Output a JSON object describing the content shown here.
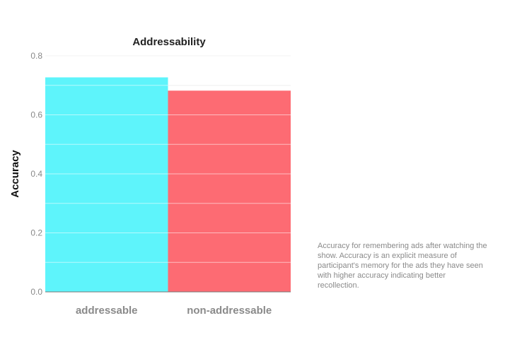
{
  "chart_data": {
    "type": "bar",
    "title": "Addressability",
    "xlabel": "",
    "ylabel": "Accuracy",
    "categories": [
      "addressable",
      "non-addressable"
    ],
    "values": [
      0.727,
      0.682
    ],
    "colors": [
      "#5ef4fb",
      "#fd6b73"
    ],
    "ylim": [
      0,
      0.8
    ],
    "yticks": [
      0.0,
      0.2,
      0.4,
      0.6,
      0.8
    ],
    "ytick_labels": [
      "0.0",
      "0.2",
      "0.4",
      "0.6",
      "0.8"
    ],
    "grid": true
  },
  "annotation": {
    "text": "Accuracy for remembering ads after watching the show. Accuracy is an explicit measure of participant's memory for the ads they have seen with higher accuracy indicating better recollection."
  }
}
